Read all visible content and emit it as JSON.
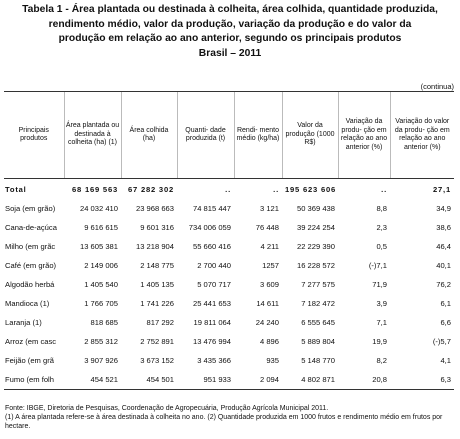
{
  "title_lines": [
    "Tabela 1 - Área plantada ou destinada à colheita, área colhida, quantidade produzida,",
    "rendimento médio, valor da produção, variação da produção e do valor da",
    "produção em relação ao ano anterior, segundo os principais produtos"
  ],
  "subtitle": "Brasil – 2011",
  "continued": "(continua)",
  "table": {
    "headers": [
      "Principais produtos",
      "Área plantada ou destinada à colheita (ha) (1)",
      "Área colhida (ha)",
      "Quanti- dade produzida (t)",
      "Rendi- mento médio (kg/ha)",
      "Valor da produção (1000 R$)",
      "Variação da produ- ção em relação ao ano anterior (%)",
      "Variação do valor da produ- ção em relação ao ano anterior (%)"
    ],
    "rows": [
      [
        "Total",
        "68 169 563",
        "67 282 302",
        "..",
        "..",
        "195 623 606",
        "..",
        "27,1"
      ],
      [
        "Soja (em grão)",
        "24 032 410",
        "23 968 663",
        "74 815 447",
        "3 121",
        "50 369 438",
        "8,8",
        "34,9"
      ],
      [
        "Cana-de-açúca",
        "9 616 615",
        "9 601 316",
        "734 006 059",
        "76 448",
        "39 224 254",
        "2,3",
        "38,6"
      ],
      [
        "Milho (em grãc",
        "13 605 381",
        "13 218 904",
        "55 660 416",
        "4 211",
        "22 229 390",
        "0,5",
        "46,4"
      ],
      [
        "Café (em grão)",
        "2 149 006",
        "2 148 775",
        "2 700 440",
        "1257",
        "16 228 572",
        "(-)7,1",
        "40,1"
      ],
      [
        "Algodão herbá",
        "1 405 540",
        "1 405 135",
        "5 070 717",
        "3 609",
        "7 277 575",
        "71,9",
        "76,2"
      ],
      [
        "Mandioca (1)",
        "1 766 705",
        "1 741 226",
        "25 441 653",
        "14 611",
        "7 182 472",
        "3,9",
        "6,1"
      ],
      [
        "Laranja (1)",
        "818 685",
        "817 292",
        "19 811 064",
        "24 240",
        "6 555 645",
        "7,1",
        "6,6"
      ],
      [
        "Arroz (em casc",
        "2 855 312",
        "2 752 891",
        "13 476 994",
        "4 896",
        "5 889 804",
        "19,9",
        "(-)5,7"
      ],
      [
        "Feijão (em grã",
        "3 907 926",
        "3 673 152",
        "3 435 366",
        "935",
        "5 148 770",
        "8,2",
        "4,1"
      ],
      [
        "Fumo (em folh",
        "454 521",
        "454 501",
        "951 933",
        "2 094",
        "4 802 871",
        "20,8",
        "6,3"
      ]
    ]
  },
  "footnotes": [
    "Fonte: IBGE, Diretoria de Pesquisas, Coordenação de Agropecuária, Produção Agrícola Municipal 2011.",
    "(1) A área plantada refere-se à área destinada à colheita no ano. (2) Quantidade produzida em 1000 frutos e rendimento médio em frutos por hectare."
  ]
}
